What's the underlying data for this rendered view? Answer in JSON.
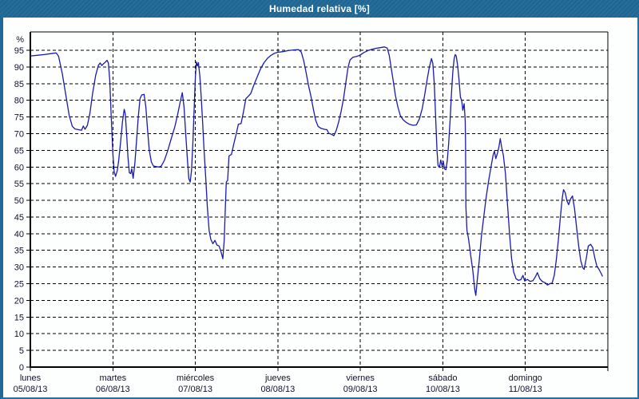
{
  "window": {
    "title": "Humedad relativa [%]"
  },
  "colors": {
    "titlebar_bg": "#1f6897",
    "frame_border": "#2b6f9f",
    "plot_bg": "#fdfffe",
    "grid": "#000000",
    "axis": "#000000",
    "label_text": "#10102a",
    "title_text": "#ffffff",
    "line": "#1a1aae"
  },
  "chart_data": {
    "type": "line",
    "title": "Humedad relativa [%]",
    "ylabel": "%",
    "unit_label": "%",
    "grid": "dashed",
    "legend": "none",
    "y_axis": {
      "min": 0,
      "max_label": 95,
      "tick_step": 5,
      "ylim": [
        0,
        100.5
      ],
      "tick_labels": [
        "0",
        "5",
        "10",
        "15",
        "20",
        "25",
        "30",
        "35",
        "40",
        "45",
        "50",
        "55",
        "60",
        "65",
        "70",
        "75",
        "80",
        "85",
        "90",
        "95"
      ]
    },
    "x_axis": {
      "range_hours": [
        0,
        168
      ],
      "days": [
        {
          "name": "lunes",
          "date": "05/08/13"
        },
        {
          "name": "martes",
          "date": "06/08/13"
        },
        {
          "name": "miércoles",
          "date": "07/08/13"
        },
        {
          "name": "jueves",
          "date": "08/08/13"
        },
        {
          "name": "viernes",
          "date": "09/08/13"
        },
        {
          "name": "sábado",
          "date": "10/08/13"
        },
        {
          "name": "domingo",
          "date": "11/08/13"
        }
      ]
    },
    "series": [
      {
        "name": "Humedad relativa",
        "color": "#1a1aae",
        "points_t_hours_value_pct": [
          [
            0,
            93.3
          ],
          [
            2,
            93.5
          ],
          [
            4,
            93.7
          ],
          [
            6,
            94
          ],
          [
            7.5,
            94.2
          ],
          [
            8.2,
            93.2
          ],
          [
            9.3,
            88
          ],
          [
            10.4,
            81
          ],
          [
            11.3,
            75.5
          ],
          [
            12.2,
            72.2
          ],
          [
            13,
            71.4
          ],
          [
            14,
            71.2
          ],
          [
            14.9,
            71
          ],
          [
            15.4,
            72.3
          ],
          [
            15.9,
            71.3
          ],
          [
            16.6,
            72.5
          ],
          [
            17.3,
            76
          ],
          [
            18.1,
            82
          ],
          [
            19,
            87.5
          ],
          [
            19.8,
            90.5
          ],
          [
            20.3,
            91.2
          ],
          [
            20.8,
            90.4
          ],
          [
            21.3,
            91
          ],
          [
            21.9,
            91.5
          ],
          [
            22.3,
            92
          ],
          [
            22.7,
            91.2
          ],
          [
            23.1,
            86
          ],
          [
            23.5,
            76
          ],
          [
            24,
            64
          ],
          [
            24.4,
            58.5
          ],
          [
            24.8,
            57.2
          ],
          [
            25.3,
            59
          ],
          [
            25.7,
            62
          ],
          [
            26.2,
            67
          ],
          [
            26.8,
            73.5
          ],
          [
            27.3,
            77.3
          ],
          [
            27.6,
            76
          ],
          [
            28,
            70
          ],
          [
            28.4,
            63
          ],
          [
            28.8,
            58.3
          ],
          [
            29.2,
            58
          ],
          [
            29.5,
            59.5
          ],
          [
            29.9,
            56.6
          ],
          [
            30.4,
            61
          ],
          [
            30.9,
            68
          ],
          [
            31.4,
            75
          ],
          [
            31.9,
            80.5
          ],
          [
            32.4,
            81.6
          ],
          [
            33.1,
            81.8
          ],
          [
            33.6,
            78
          ],
          [
            34.1,
            71
          ],
          [
            34.6,
            65
          ],
          [
            35.2,
            61.5
          ],
          [
            35.8,
            60.3
          ],
          [
            36.6,
            60.1
          ],
          [
            37.4,
            60
          ],
          [
            38.1,
            60.3
          ],
          [
            39,
            62
          ],
          [
            40,
            65
          ],
          [
            41,
            68.5
          ],
          [
            42,
            72
          ],
          [
            42.8,
            75.5
          ],
          [
            43.6,
            79.5
          ],
          [
            44.2,
            82.3
          ],
          [
            44.7,
            78
          ],
          [
            45.2,
            70
          ],
          [
            45.7,
            62
          ],
          [
            46.1,
            56.5
          ],
          [
            46.5,
            55.5
          ],
          [
            46.9,
            59
          ],
          [
            47.3,
            68
          ],
          [
            47.7,
            79
          ],
          [
            48,
            87
          ],
          [
            48.3,
            91.5
          ],
          [
            48.6,
            90.3
          ],
          [
            48.9,
            91.3
          ],
          [
            49.3,
            87.3
          ],
          [
            49.7,
            81
          ],
          [
            50.1,
            73.8
          ],
          [
            50.5,
            65.8
          ],
          [
            51,
            57
          ],
          [
            51.5,
            48
          ],
          [
            52,
            41
          ],
          [
            52.5,
            38.3
          ],
          [
            53.1,
            37
          ],
          [
            53.7,
            38
          ],
          [
            54.3,
            36.6
          ],
          [
            54.9,
            36.3
          ],
          [
            55.5,
            34.5
          ],
          [
            56,
            32.5
          ],
          [
            56.4,
            38
          ],
          [
            56.7,
            47
          ],
          [
            57,
            55.5
          ],
          [
            57.4,
            56
          ],
          [
            57.8,
            63.3
          ],
          [
            58.5,
            63.8
          ],
          [
            59.2,
            67
          ],
          [
            59.9,
            70
          ],
          [
            60.5,
            72.8
          ],
          [
            61.3,
            73
          ],
          [
            62,
            76.5
          ],
          [
            62.7,
            80.5
          ],
          [
            63.4,
            81.2
          ],
          [
            64.1,
            82
          ],
          [
            65,
            84.5
          ],
          [
            66,
            87
          ],
          [
            67,
            89.5
          ],
          [
            68,
            91.3
          ],
          [
            69,
            92.6
          ],
          [
            70,
            93.5
          ],
          [
            71,
            94.1
          ],
          [
            72,
            94.4
          ],
          [
            73.5,
            94.6
          ],
          [
            75,
            94.9
          ],
          [
            76.5,
            95.1
          ],
          [
            78,
            95.2
          ],
          [
            78.8,
            94.5
          ],
          [
            79.5,
            92
          ],
          [
            80.2,
            88.5
          ],
          [
            80.9,
            84.5
          ],
          [
            81.6,
            81.3
          ],
          [
            82.3,
            77.5
          ],
          [
            83,
            74
          ],
          [
            83.7,
            72.2
          ],
          [
            84.5,
            71.6
          ],
          [
            85.5,
            71.3
          ],
          [
            86.3,
            71.2
          ],
          [
            86.8,
            70.1
          ],
          [
            87.6,
            69.8
          ],
          [
            88.3,
            69.4
          ],
          [
            89,
            71
          ],
          [
            89.7,
            73.5
          ],
          [
            90.4,
            76.6
          ],
          [
            91.1,
            80.5
          ],
          [
            91.8,
            85.5
          ],
          [
            92.4,
            89.8
          ],
          [
            93,
            92.1
          ],
          [
            93.8,
            92.9
          ],
          [
            94.8,
            93.1
          ],
          [
            95.8,
            93.5
          ],
          [
            97,
            94.3
          ],
          [
            98.2,
            94.9
          ],
          [
            99.4,
            95.3
          ],
          [
            100.6,
            95.6
          ],
          [
            101.8,
            95.8
          ],
          [
            103,
            96
          ],
          [
            103.8,
            95.7
          ],
          [
            104.4,
            93.5
          ],
          [
            105,
            89.5
          ],
          [
            105.6,
            85.5
          ],
          [
            106.2,
            81.5
          ],
          [
            106.9,
            78
          ],
          [
            107.6,
            75.5
          ],
          [
            108.4,
            74.2
          ],
          [
            109.3,
            73.4
          ],
          [
            110.3,
            72.8
          ],
          [
            111.3,
            72.5
          ],
          [
            112.3,
            72.6
          ],
          [
            113.2,
            74.5
          ],
          [
            114,
            77.5
          ],
          [
            114.7,
            81.5
          ],
          [
            115.4,
            86
          ],
          [
            116.1,
            90
          ],
          [
            116.7,
            92.5
          ],
          [
            117.1,
            91
          ],
          [
            117.5,
            85
          ],
          [
            117.9,
            75
          ],
          [
            118.3,
            65
          ],
          [
            118.6,
            60.5
          ],
          [
            119,
            59.9
          ],
          [
            119.4,
            62.1
          ],
          [
            119.8,
            60.2
          ],
          [
            120.1,
            61.7
          ],
          [
            120.5,
            59.4
          ],
          [
            120.9,
            59.2
          ],
          [
            121.3,
            62
          ],
          [
            121.7,
            67
          ],
          [
            122.1,
            74
          ],
          [
            122.5,
            82
          ],
          [
            122.9,
            88.5
          ],
          [
            123.3,
            92.5
          ],
          [
            123.6,
            93.7
          ],
          [
            123.9,
            93.3
          ],
          [
            124.3,
            90.5
          ],
          [
            124.7,
            86.1
          ],
          [
            125.1,
            81
          ],
          [
            125.5,
            79.8
          ],
          [
            125.8,
            77
          ],
          [
            126.2,
            79
          ],
          [
            126.5,
            74
          ],
          [
            126.6,
            68
          ],
          [
            126.7,
            48
          ],
          [
            127,
            41
          ],
          [
            127.5,
            38.3
          ],
          [
            128.1,
            33.5
          ],
          [
            128.7,
            29
          ],
          [
            129.3,
            23
          ],
          [
            129.6,
            21.5
          ],
          [
            130,
            26
          ],
          [
            130.6,
            32
          ],
          [
            131.2,
            39
          ],
          [
            131.9,
            45
          ],
          [
            132.6,
            51
          ],
          [
            133.3,
            55.8
          ],
          [
            134,
            60
          ],
          [
            134.6,
            63.5
          ],
          [
            135,
            64.8
          ],
          [
            135.4,
            62.5
          ],
          [
            135.9,
            64.2
          ],
          [
            136.3,
            66
          ],
          [
            136.7,
            68.5
          ],
          [
            137.1,
            66
          ],
          [
            137.6,
            63.5
          ],
          [
            138.2,
            58
          ],
          [
            138.8,
            49
          ],
          [
            139.4,
            40
          ],
          [
            140,
            32.5
          ],
          [
            140.6,
            28.5
          ],
          [
            141.3,
            26.5
          ],
          [
            142,
            26
          ],
          [
            142.7,
            26.2
          ],
          [
            143.3,
            27.5
          ],
          [
            143.8,
            25.8
          ],
          [
            144.6,
            26.3
          ],
          [
            145.4,
            25.7
          ],
          [
            146.2,
            25.9
          ],
          [
            147,
            27.2
          ],
          [
            147.5,
            28.3
          ],
          [
            148.2,
            26.5
          ],
          [
            149,
            25.6
          ],
          [
            149.8,
            25.3
          ],
          [
            150.4,
            24.6
          ],
          [
            151.1,
            25
          ],
          [
            151.8,
            25.2
          ],
          [
            152.4,
            27.5
          ],
          [
            153,
            32
          ],
          [
            153.6,
            38
          ],
          [
            154.2,
            45
          ],
          [
            154.7,
            50.5
          ],
          [
            155.1,
            53.2
          ],
          [
            155.6,
            52.3
          ],
          [
            156.1,
            49.8
          ],
          [
            156.6,
            48.7
          ],
          [
            157.2,
            50.5
          ],
          [
            157.7,
            51.3
          ],
          [
            158.3,
            47.5
          ],
          [
            158.9,
            42
          ],
          [
            159.5,
            36.5
          ],
          [
            160.1,
            32
          ],
          [
            160.7,
            29.8
          ],
          [
            161.1,
            29.3
          ],
          [
            161.7,
            32.5
          ],
          [
            162.3,
            36.3
          ],
          [
            163,
            36.8
          ],
          [
            163.6,
            35.8
          ],
          [
            164.2,
            32.8
          ],
          [
            164.8,
            30.3
          ],
          [
            165.5,
            29.2
          ],
          [
            166.1,
            28
          ],
          [
            166.4,
            27.3
          ]
        ]
      }
    ]
  }
}
